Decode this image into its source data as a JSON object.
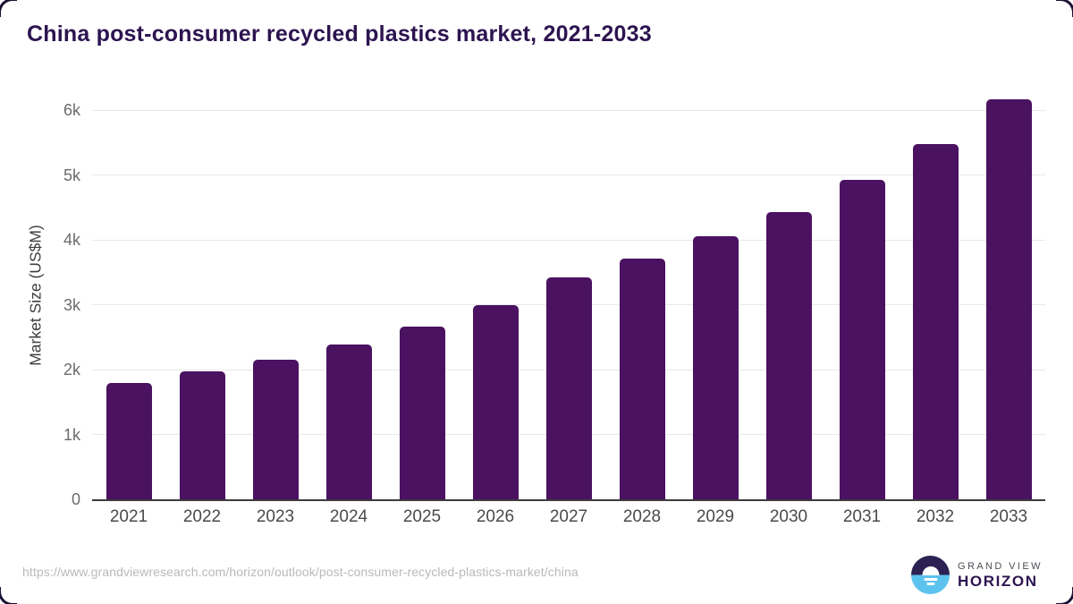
{
  "page": {
    "title": "China post-consumer recycled plastics market, 2021-2033"
  },
  "chart_data": {
    "type": "bar",
    "title": "China post-consumer recycled plastics market, 2021-2033",
    "categories": [
      "2021",
      "2022",
      "2023",
      "2024",
      "2025",
      "2026",
      "2027",
      "2028",
      "2029",
      "2030",
      "2031",
      "2032",
      "2033"
    ],
    "values": [
      1790,
      1970,
      2155,
      2385,
      2665,
      3000,
      3420,
      3710,
      4055,
      4430,
      4925,
      5475,
      6165
    ],
    "xlabel": "",
    "ylabel": "Market Size (US$M)",
    "ylim": [
      0,
      6400
    ],
    "yticks": [
      {
        "value": 0,
        "label": "0"
      },
      {
        "value": 1000,
        "label": "1k"
      },
      {
        "value": 2000,
        "label": "2k"
      },
      {
        "value": 3000,
        "label": "3k"
      },
      {
        "value": 4000,
        "label": "4k"
      },
      {
        "value": 5000,
        "label": "5k"
      },
      {
        "value": 6000,
        "label": "6k"
      }
    ],
    "grid": true,
    "legend": false,
    "bar_color": "#4a1261"
  },
  "footer": {
    "source_url": "https://www.grandviewresearch.com/horizon/outlook/post-consumer-recycled-plastics-market/china",
    "logo": {
      "line1": "GRAND VIEW",
      "line2": "HORIZON"
    }
  },
  "colors": {
    "title": "#2d1450",
    "bar": "#4a1261",
    "axis_line": "#3c3c3c",
    "gridline": "#e8e8ea",
    "tick_text": "#6b6b6b",
    "x_label_text": "#4a4a4a",
    "url_text": "#b9b9b9",
    "logo_navy": "#2b2153",
    "logo_blue": "#5cc3ee",
    "logo_text_gray": "#4d4d55"
  }
}
